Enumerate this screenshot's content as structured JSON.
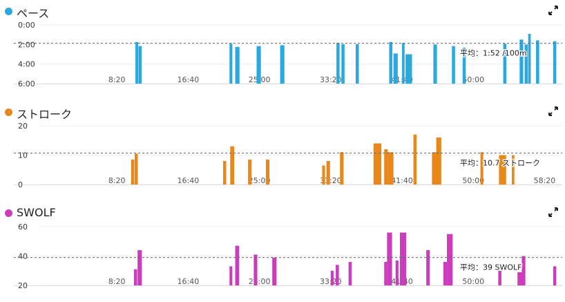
{
  "icons": {
    "expand": "expand-arrows-icon"
  },
  "chart_data": [
    {
      "type": "bar",
      "title": "ペース",
      "color": "#29a9e0",
      "y_ticks": [
        "0:00",
        "2:00",
        "4:00",
        "6:00"
      ],
      "y_inverted": true,
      "ylim_seconds": [
        0,
        360
      ],
      "x_ticks": [
        "8:20",
        "16:40",
        "25:00",
        "33:20",
        "41:40",
        "50:00"
      ],
      "xlim_seconds": [
        0,
        3585
      ],
      "average_label": "平均：1:52 /100m",
      "average_seconds": 112,
      "bars": [
        {
          "x": 630,
          "w": 20,
          "y": 105
        },
        {
          "x": 652,
          "w": 22,
          "y": 130
        },
        {
          "x": 1290,
          "w": 20,
          "y": 115
        },
        {
          "x": 1330,
          "w": 30,
          "y": 135
        },
        {
          "x": 1480,
          "w": 30,
          "y": 130
        },
        {
          "x": 1645,
          "w": 30,
          "y": 125
        },
        {
          "x": 2040,
          "w": 22,
          "y": 110
        },
        {
          "x": 2075,
          "w": 22,
          "y": 118
        },
        {
          "x": 2175,
          "w": 22,
          "y": 118
        },
        {
          "x": 2410,
          "w": 22,
          "y": 105
        },
        {
          "x": 2440,
          "w": 30,
          "y": 175
        },
        {
          "x": 2500,
          "w": 18,
          "y": 110
        },
        {
          "x": 2525,
          "w": 45,
          "y": 180
        },
        {
          "x": 2720,
          "w": 25,
          "y": 120
        },
        {
          "x": 2850,
          "w": 22,
          "y": 130
        },
        {
          "x": 2925,
          "w": 22,
          "y": 140
        },
        {
          "x": 3210,
          "w": 22,
          "y": 115
        },
        {
          "x": 3325,
          "w": 25,
          "y": 90
        },
        {
          "x": 3360,
          "w": 22,
          "y": 120
        },
        {
          "x": 3385,
          "w": 18,
          "y": 55
        },
        {
          "x": 3440,
          "w": 22,
          "y": 95
        },
        {
          "x": 3560,
          "w": 22,
          "y": 100
        }
      ]
    },
    {
      "type": "bar",
      "title": "ストローク",
      "color": "#e8881a",
      "y_ticks": [
        "20",
        "10",
        "0"
      ],
      "ylim": [
        0,
        20
      ],
      "x_ticks": [
        "8:20",
        "16:40",
        "25:00",
        "33:20",
        "41:40",
        "50:00",
        "58:20"
      ],
      "xlim_seconds": [
        0,
        3585
      ],
      "average_label": "平均：10.7 ストローク",
      "average_value": 10.7,
      "bars": [
        {
          "x": 600,
          "w": 22,
          "y": 8.5
        },
        {
          "x": 625,
          "w": 22,
          "y": 10.5
        },
        {
          "x": 1245,
          "w": 22,
          "y": 8
        },
        {
          "x": 1295,
          "w": 28,
          "y": 13
        },
        {
          "x": 1420,
          "w": 25,
          "y": 8.5
        },
        {
          "x": 1545,
          "w": 25,
          "y": 8.5
        },
        {
          "x": 1940,
          "w": 20,
          "y": 6.5
        },
        {
          "x": 1970,
          "w": 25,
          "y": 8
        },
        {
          "x": 2065,
          "w": 25,
          "y": 11
        },
        {
          "x": 2300,
          "w": 55,
          "y": 14
        },
        {
          "x": 2375,
          "w": 25,
          "y": 12
        },
        {
          "x": 2400,
          "w": 40,
          "y": 11
        },
        {
          "x": 2580,
          "w": 22,
          "y": 17
        },
        {
          "x": 2710,
          "w": 55,
          "y": 11
        },
        {
          "x": 2740,
          "w": 35,
          "y": 16
        },
        {
          "x": 3050,
          "w": 20,
          "y": 11
        },
        {
          "x": 3180,
          "w": 50,
          "y": 10
        },
        {
          "x": 3270,
          "w": 18,
          "y": 10
        }
      ]
    },
    {
      "type": "bar",
      "title": "SWOLF",
      "color": "#cc3dbd",
      "y_ticks": [
        "60",
        "40",
        "20"
      ],
      "ylim": [
        20,
        60
      ],
      "x_ticks": [
        "8:20",
        "16:40",
        "25:00",
        "33:20",
        "41:40",
        "50:00"
      ],
      "xlim_seconds": [
        0,
        3585
      ],
      "average_label": "平均：39 SWOLF",
      "average_value": 39,
      "bars": [
        {
          "x": 620,
          "w": 22,
          "y": 31
        },
        {
          "x": 645,
          "w": 30,
          "y": 44
        },
        {
          "x": 1290,
          "w": 20,
          "y": 33
        },
        {
          "x": 1330,
          "w": 28,
          "y": 47
        },
        {
          "x": 1460,
          "w": 25,
          "y": 41
        },
        {
          "x": 1590,
          "w": 30,
          "y": 39
        },
        {
          "x": 2000,
          "w": 20,
          "y": 30
        },
        {
          "x": 2035,
          "w": 22,
          "y": 34
        },
        {
          "x": 2125,
          "w": 22,
          "y": 36
        },
        {
          "x": 2375,
          "w": 20,
          "y": 36
        },
        {
          "x": 2395,
          "w": 35,
          "y": 56
        },
        {
          "x": 2455,
          "w": 20,
          "y": 37
        },
        {
          "x": 2485,
          "w": 45,
          "y": 56
        },
        {
          "x": 2670,
          "w": 25,
          "y": 44
        },
        {
          "x": 2790,
          "w": 25,
          "y": 36
        },
        {
          "x": 2815,
          "w": 40,
          "y": 55
        },
        {
          "x": 3175,
          "w": 22,
          "y": 30
        },
        {
          "x": 3310,
          "w": 50,
          "y": 29
        },
        {
          "x": 3340,
          "w": 25,
          "y": 40
        },
        {
          "x": 3560,
          "w": 22,
          "y": 33
        }
      ]
    }
  ]
}
